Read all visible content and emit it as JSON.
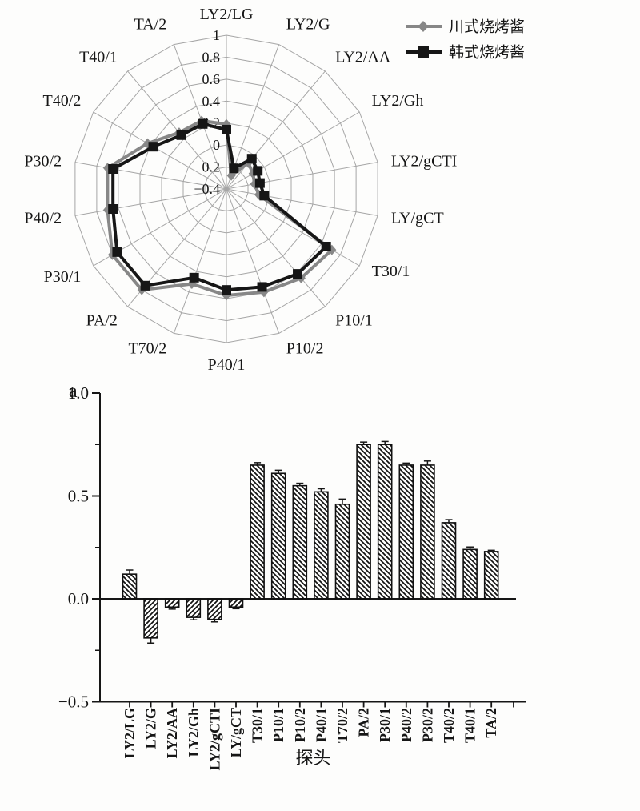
{
  "figure": {
    "panel_label": "a",
    "background": "#fdfdfc",
    "text_color": "#161616",
    "grid_color": "#a6a6a6"
  },
  "chart_data": [
    {
      "type": "radar",
      "title": "",
      "categories": [
        "LY2/LG",
        "LY2/G",
        "LY2/AA",
        "LY2/Gh",
        "LY2/gCTI",
        "LY/gCT",
        "T30/1",
        "P10/1",
        "P10/2",
        "P40/1",
        "T70/2",
        "PA/2",
        "P30/1",
        "P40/2",
        "P30/2",
        "T40/2",
        "T40/1",
        "TA/2"
      ],
      "angle_step_deg": 20,
      "radial_range": [
        -0.4,
        1.0
      ],
      "radial_tick_values": [
        1,
        0.8,
        0.6,
        0.4,
        0.2,
        0,
        -0.2,
        -0.4
      ],
      "radial_tick_labels": [
        "1",
        "0.8",
        "0.6",
        "0.4",
        "0.2",
        "0",
        "−0.2",
        "−0.4"
      ],
      "grid": true,
      "legend_position": "top-right",
      "series": [
        {
          "name": "川式烧烤酱",
          "marker": "diamond",
          "color": "#878787",
          "values": [
            0.19,
            -0.27,
            -0.09,
            -0.12,
            -0.14,
            -0.1,
            0.71,
            0.66,
            0.6,
            0.57,
            0.52,
            0.8,
            0.8,
            0.7,
            0.7,
            0.43,
            0.27,
            0.26
          ]
        },
        {
          "name": "韩式烧烤酱",
          "marker": "square",
          "color": "#161616",
          "values": [
            0.14,
            -0.2,
            -0.04,
            -0.07,
            -0.09,
            -0.05,
            0.65,
            0.61,
            0.55,
            0.52,
            0.46,
            0.75,
            0.75,
            0.65,
            0.65,
            0.37,
            0.24,
            0.23
          ]
        }
      ]
    },
    {
      "type": "bar",
      "panel_label": "a",
      "categories": [
        "LY2/LG",
        "LY2/G",
        "LY2/AA",
        "LY2/Gh",
        "LY2/gCTI",
        "LY/gCT",
        "T30/1",
        "P10/1",
        "P10/2",
        "P40/1",
        "T70/2",
        "PA/2",
        "P30/1",
        "P40/2",
        "P30/2",
        "T40/2",
        "T40/1",
        "TA/2"
      ],
      "values": [
        0.12,
        -0.19,
        -0.04,
        -0.09,
        -0.1,
        -0.04,
        0.65,
        0.61,
        0.55,
        0.52,
        0.46,
        0.75,
        0.75,
        0.65,
        0.65,
        0.37,
        0.24,
        0.23
      ],
      "errors": [
        0.02,
        0.025,
        0.01,
        0.012,
        0.012,
        0.008,
        0.012,
        0.015,
        0.012,
        0.015,
        0.025,
        0.012,
        0.015,
        0.01,
        0.02,
        0.015,
        0.012,
        0.006
      ],
      "xlabel": "探头",
      "ylabel": "",
      "ylim": [
        -0.5,
        1.0
      ],
      "ytick_values": [
        1.0,
        0.5,
        0.0,
        -0.5
      ],
      "ytick_labels": [
        "1.0",
        "0.5",
        "0.0",
        "−0.5"
      ],
      "minor_ytick_values": [
        0.75,
        0.25,
        -0.25
      ],
      "bar_style": {
        "fill": "hatch",
        "hatch_positive": "\\",
        "hatch_negative": "/",
        "outline": "#111111"
      }
    }
  ]
}
